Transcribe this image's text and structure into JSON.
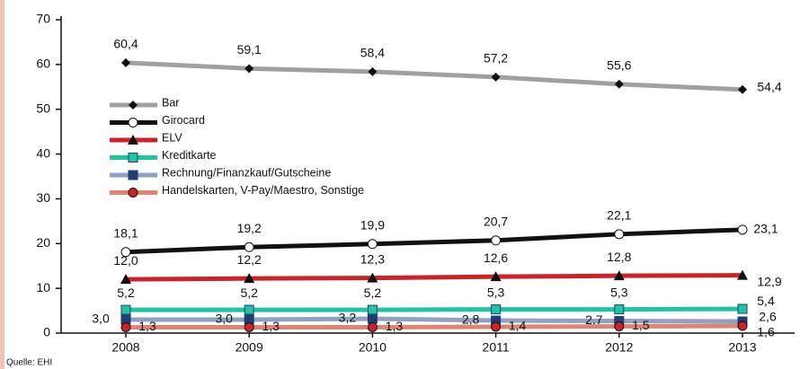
{
  "chart_data": {
    "type": "line",
    "categories": [
      "2008",
      "2009",
      "2010",
      "2011",
      "2012",
      "2013"
    ],
    "ylim": [
      0,
      70
    ],
    "yticks": [
      0,
      10,
      20,
      30,
      40,
      50,
      60,
      70
    ],
    "series": [
      {
        "name": "Bar",
        "color": "#a0a0a0",
        "marker": "diamond",
        "marker_color": "#111111",
        "values": [
          60.4,
          59.1,
          58.4,
          57.2,
          55.6,
          54.4
        ],
        "value_labels": [
          "60,4",
          "59,1",
          "58,4",
          "57,2",
          "55,6",
          "54,4"
        ]
      },
      {
        "name": "Girocard",
        "color": "#111111",
        "marker": "circle",
        "marker_color": "#ffffff",
        "values": [
          18.1,
          19.2,
          19.9,
          20.7,
          22.1,
          23.1
        ],
        "value_labels": [
          "18,1",
          "19,2",
          "19,9",
          "20,7",
          "22,1",
          "23,1"
        ]
      },
      {
        "name": "ELV",
        "color": "#cc2229",
        "marker": "triangle",
        "marker_color": "#111111",
        "values": [
          12.0,
          12.2,
          12.3,
          12.6,
          12.8,
          12.9
        ],
        "value_labels": [
          "12,0",
          "12,2",
          "12,3",
          "12,6",
          "12,8",
          "12,9"
        ]
      },
      {
        "name": "Kreditkarte",
        "color": "#22c2a4",
        "marker": "square",
        "marker_color": "#22c2a4",
        "values": [
          5.2,
          5.2,
          5.2,
          5.3,
          5.3,
          5.4
        ],
        "value_labels": [
          "5,2",
          "5,2",
          "5,2",
          "5,3",
          "5,3",
          "5,4"
        ]
      },
      {
        "name": "Rechnung/Finanzkauf/Gutscheine",
        "color": "#8ea2c6",
        "marker": "square",
        "marker_color": "#1f3f73",
        "values": [
          3.0,
          3.0,
          3.2,
          2.8,
          2.7,
          2.6
        ],
        "value_labels": [
          "3,0",
          "3,0",
          "3,2",
          "2,8",
          "2,7",
          "2,6"
        ]
      },
      {
        "name": "Handelskarten, V-Pay/Maestro, Sonstige",
        "color": "#e08472",
        "marker": "circle",
        "marker_color": "#cc2229",
        "values": [
          1.3,
          1.3,
          1.3,
          1.4,
          1.5,
          1.6
        ],
        "value_labels": [
          "1,3",
          "1,3",
          "1,3",
          "1,4",
          "1,5",
          "1,6"
        ]
      }
    ]
  },
  "source": "Quelle: EHI"
}
